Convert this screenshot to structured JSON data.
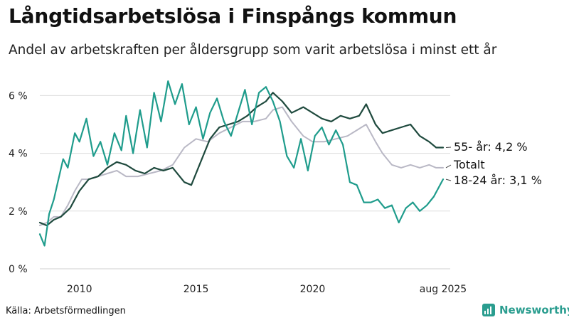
{
  "title": "Långtidsarbetslösa i Finspångs kommun",
  "subtitle": "Andel av arbetskraften per åldersgrupp som varit arbetslösa i minst ett år",
  "source": "Källa: Arbetsförmedlingen",
  "brand": "Newsworthy",
  "colors": {
    "s55": "#1f4a3e",
    "total": "#b9b8c5",
    "youth": "#1f9c8c",
    "grid": "#dddddd",
    "brand": "#2a9d8f"
  },
  "chart_data": {
    "type": "line",
    "x_unit": "year",
    "xlim": [
      2008.3,
      2025.6
    ],
    "ylim": [
      0,
      6.6
    ],
    "y_ticks": [
      0,
      2,
      4,
      6
    ],
    "y_tick_labels": [
      "0 %",
      "2 %",
      "4 %",
      "6 %"
    ],
    "x_ticks": [
      2010,
      2015,
      2020,
      2025.6
    ],
    "x_tick_labels": [
      "2010",
      "2015",
      "2020",
      "aug 2025"
    ],
    "series": [
      {
        "key": "total",
        "label": "Totalt",
        "x": [
          2008.3,
          2008.6,
          2008.9,
          2009.2,
          2009.5,
          2009.8,
          2010.1,
          2010.4,
          2010.8,
          2011.2,
          2011.6,
          2012.0,
          2012.5,
          2013.0,
          2013.5,
          2014.0,
          2014.5,
          2015.0,
          2015.5,
          2016.0,
          2016.5,
          2017.0,
          2017.5,
          2018.0,
          2018.3,
          2018.7,
          2019.1,
          2019.6,
          2020.0,
          2020.5,
          2021.0,
          2021.5,
          2021.9,
          2022.3,
          2022.7,
          2023.0,
          2023.4,
          2023.8,
          2024.2,
          2024.6,
          2025.0,
          2025.3,
          2025.6
        ],
        "y": [
          1.5,
          1.6,
          1.8,
          1.8,
          2.2,
          2.7,
          3.1,
          3.1,
          3.2,
          3.3,
          3.4,
          3.2,
          3.2,
          3.3,
          3.4,
          3.6,
          4.2,
          4.5,
          4.4,
          4.7,
          4.9,
          5.1,
          5.1,
          5.2,
          5.5,
          5.6,
          5.1,
          4.6,
          4.4,
          4.4,
          4.5,
          4.6,
          4.8,
          5.0,
          4.4,
          4.0,
          3.6,
          3.5,
          3.6,
          3.5,
          3.6,
          3.5,
          3.5
        ]
      },
      {
        "key": "s55",
        "label": "55- år: 4,2 %",
        "x": [
          2008.3,
          2008.6,
          2008.9,
          2009.2,
          2009.6,
          2010.0,
          2010.4,
          2010.8,
          2011.2,
          2011.6,
          2012.0,
          2012.4,
          2012.8,
          2013.2,
          2013.6,
          2014.0,
          2014.5,
          2014.8,
          2015.2,
          2015.6,
          2016.0,
          2016.4,
          2016.8,
          2017.2,
          2017.6,
          2018.0,
          2018.3,
          2018.7,
          2019.1,
          2019.6,
          2020.0,
          2020.4,
          2020.8,
          2021.2,
          2021.6,
          2022.0,
          2022.3,
          2022.7,
          2023.0,
          2023.4,
          2023.8,
          2024.2,
          2024.6,
          2025.0,
          2025.3,
          2025.6
        ],
        "y": [
          1.6,
          1.5,
          1.7,
          1.8,
          2.1,
          2.7,
          3.1,
          3.2,
          3.5,
          3.7,
          3.6,
          3.4,
          3.3,
          3.5,
          3.4,
          3.5,
          3.0,
          2.9,
          3.7,
          4.5,
          4.9,
          5.0,
          5.1,
          5.3,
          5.6,
          5.8,
          6.1,
          5.8,
          5.4,
          5.6,
          5.4,
          5.2,
          5.1,
          5.3,
          5.2,
          5.3,
          5.7,
          5.0,
          4.7,
          4.8,
          4.9,
          5.0,
          4.6,
          4.4,
          4.2,
          4.2
        ]
      },
      {
        "key": "youth",
        "label": "18-24 år: 3,1 %",
        "x": [
          2008.3,
          2008.5,
          2008.7,
          2008.9,
          2009.1,
          2009.3,
          2009.5,
          2009.8,
          2010.0,
          2010.3,
          2010.6,
          2010.9,
          2011.2,
          2011.5,
          2011.8,
          2012.0,
          2012.3,
          2012.6,
          2012.9,
          2013.2,
          2013.5,
          2013.8,
          2014.1,
          2014.4,
          2014.7,
          2015.0,
          2015.3,
          2015.6,
          2015.9,
          2016.2,
          2016.5,
          2016.8,
          2017.1,
          2017.4,
          2017.7,
          2018.0,
          2018.3,
          2018.6,
          2018.9,
          2019.2,
          2019.5,
          2019.8,
          2020.1,
          2020.4,
          2020.7,
          2021.0,
          2021.3,
          2021.6,
          2021.9,
          2022.2,
          2022.5,
          2022.8,
          2023.1,
          2023.4,
          2023.7,
          2024.0,
          2024.3,
          2024.6,
          2024.9,
          2025.2,
          2025.6
        ],
        "y": [
          1.2,
          0.8,
          1.9,
          2.4,
          3.1,
          3.8,
          3.5,
          4.7,
          4.4,
          5.2,
          3.9,
          4.4,
          3.6,
          4.7,
          4.1,
          5.3,
          4.0,
          5.5,
          4.2,
          6.1,
          5.1,
          6.5,
          5.7,
          6.4,
          5.0,
          5.6,
          4.5,
          5.4,
          5.9,
          5.1,
          4.6,
          5.4,
          6.2,
          5.0,
          6.1,
          6.3,
          5.8,
          5.1,
          3.9,
          3.5,
          4.5,
          3.4,
          4.6,
          4.9,
          4.3,
          4.8,
          4.3,
          3.0,
          2.9,
          2.3,
          2.3,
          2.4,
          2.1,
          2.2,
          1.6,
          2.1,
          2.3,
          2.0,
          2.2,
          2.5,
          3.1
        ]
      }
    ]
  }
}
